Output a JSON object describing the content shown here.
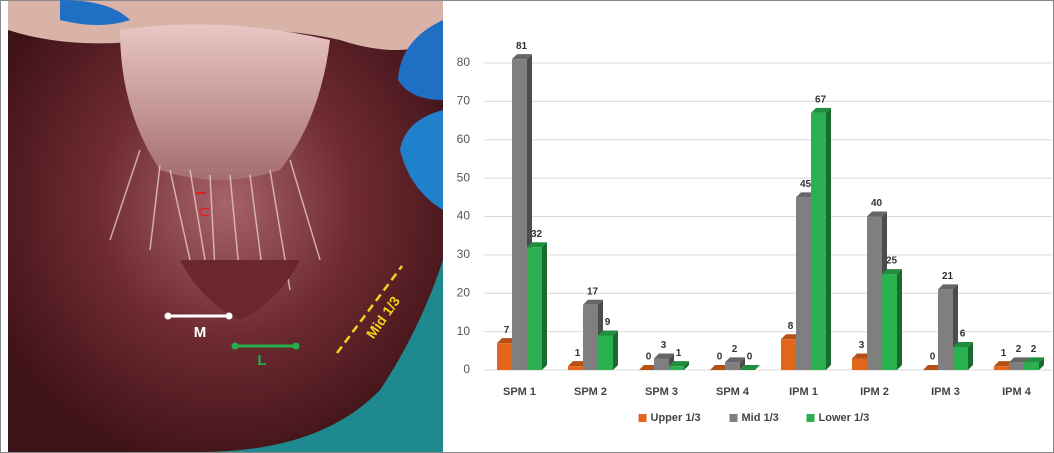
{
  "photo_labels": {
    "upper": "U",
    "medial": "M",
    "lateral": "L",
    "mid": "Mid 1/3"
  },
  "chart_data": {
    "type": "bar3d",
    "categories": [
      "SPM 1",
      "SPM 2",
      "SPM 3",
      "SPM 4",
      "IPM 1",
      "IPM 2",
      "IPM 3",
      "IPM 4"
    ],
    "series": [
      {
        "name": "Upper 1/3",
        "color": "#e2651c",
        "values": [
          7,
          1,
          0,
          0,
          8,
          3,
          0,
          1
        ]
      },
      {
        "name": "Mid 1/3",
        "color": "#7f7f7f",
        "values": [
          81,
          17,
          3,
          2,
          45,
          40,
          21,
          2
        ]
      },
      {
        "name": "Lower 1/3",
        "color": "#2bb04f",
        "values": [
          32,
          9,
          1,
          0,
          67,
          25,
          6,
          2
        ]
      }
    ],
    "ylim": [
      0,
      80
    ],
    "yticks": [
      0,
      10,
      20,
      30,
      40,
      50,
      60,
      70,
      80
    ],
    "grid": true,
    "legend": "bottom"
  }
}
